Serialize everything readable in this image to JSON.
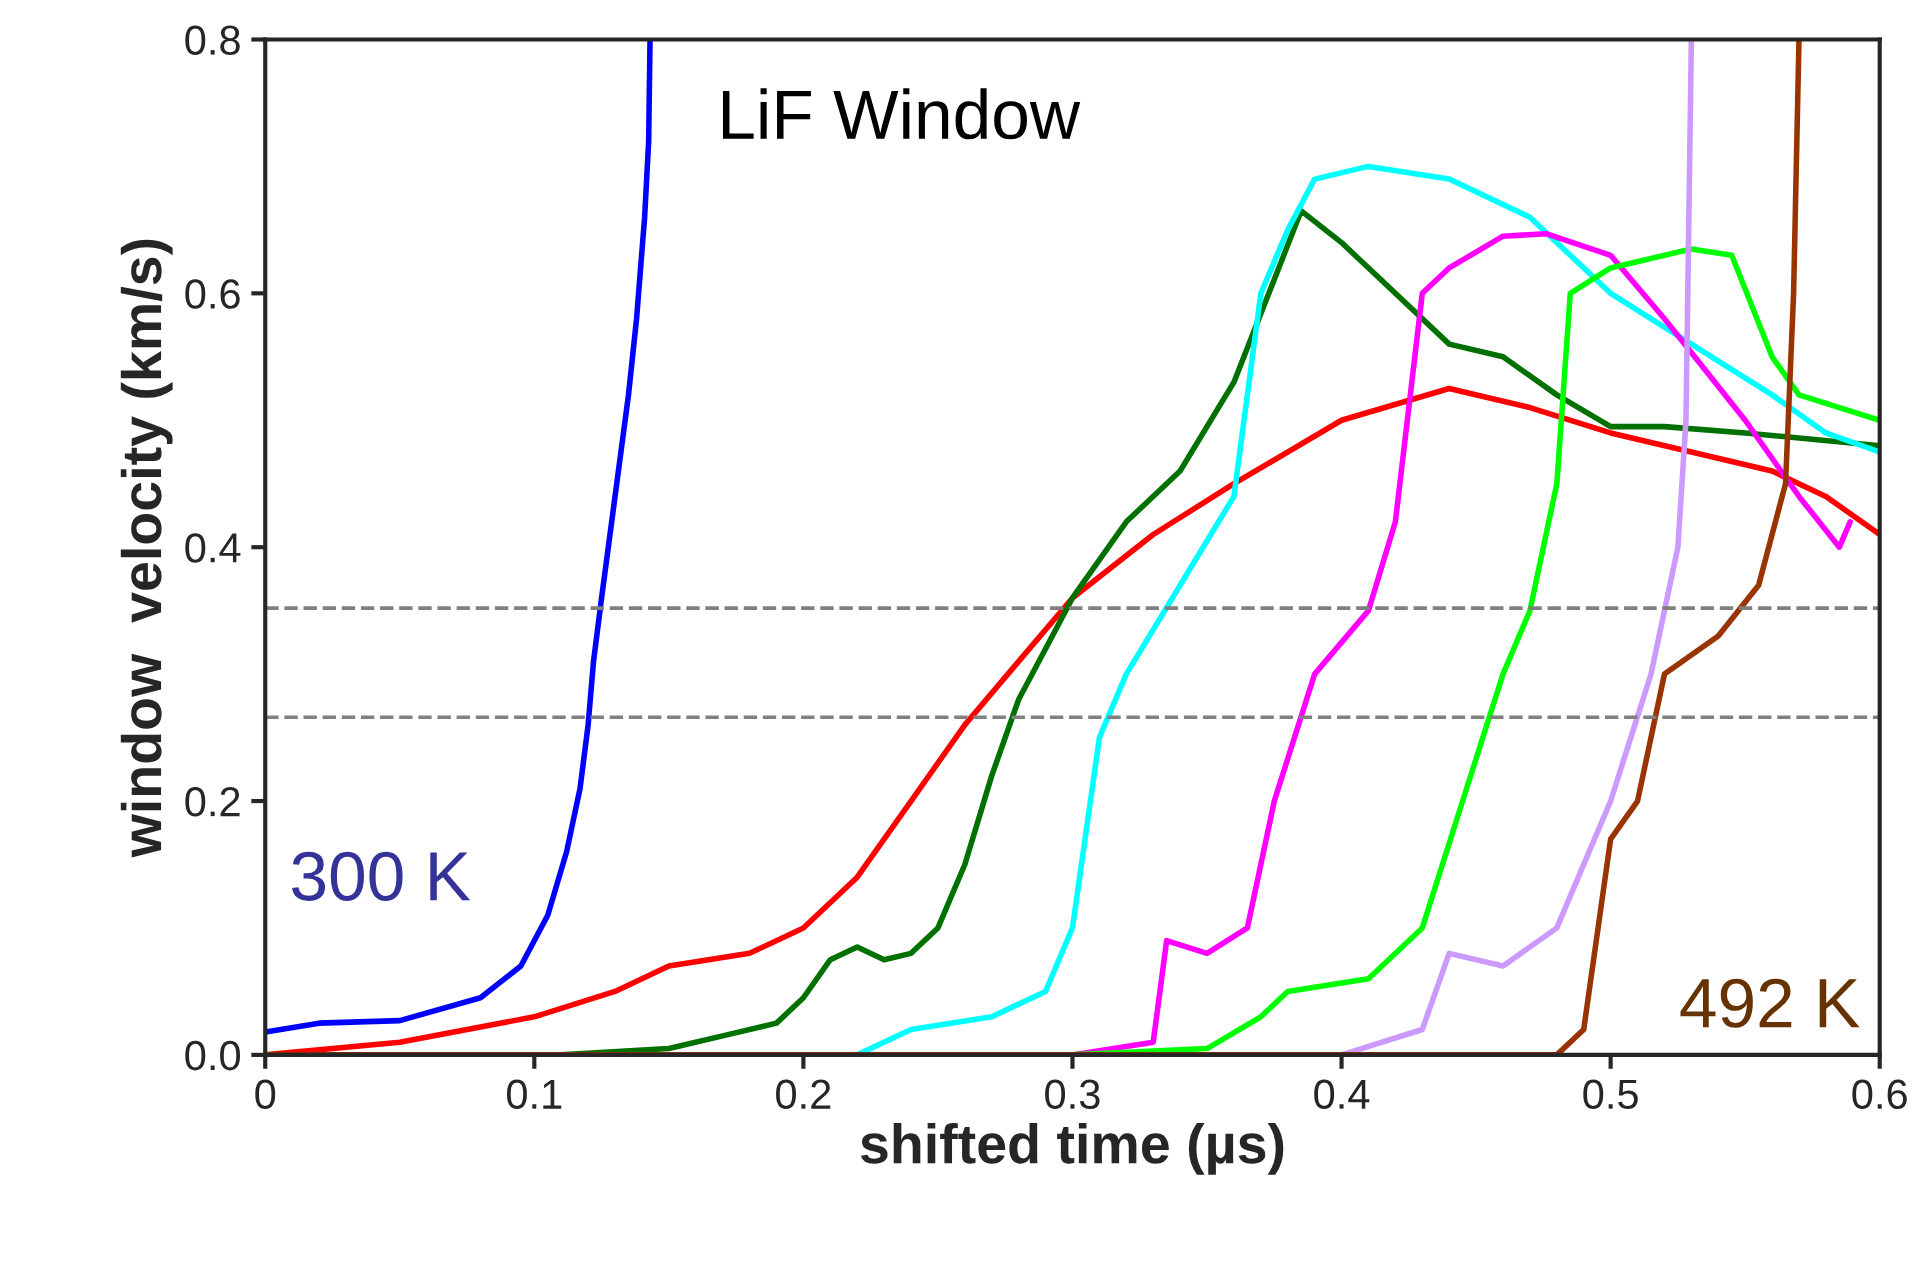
{
  "chart_data": {
    "type": "line",
    "xlabel": "shifted time (µs)",
    "ylabel": "window  velocity (km/s)",
    "xlim": [
      0,
      0.6
    ],
    "xticks": [
      {
        "value": 0,
        "label": "0"
      },
      0.1,
      0.2,
      0.3,
      0.4,
      0.5,
      0.6
    ],
    "ylim": [
      0,
      0.8
    ],
    "yticks": [
      {
        "value": 0,
        "label": "0.0"
      },
      0.2,
      0.4,
      0.6,
      0.8
    ],
    "grid": false,
    "line_style": "solid",
    "marker": "none",
    "annotations": [
      "LiF Window",
      "300 K",
      "492 K"
    ],
    "ref_lines": [
      {
        "axis": "y",
        "value": 0.352,
        "color": "#808080",
        "line_style": "dashed"
      },
      {
        "axis": "y",
        "value": 0.266,
        "color": "#808080",
        "line_style": "dashed"
      }
    ],
    "series": [
      {
        "color": "#0000ff",
        "x": [
          0,
          0.02,
          0.05,
          0.08,
          0.095,
          0.105,
          0.112,
          0.117,
          0.12,
          0.122,
          0.125,
          0.13,
          0.135,
          0.138,
          0.141,
          0.1425,
          0.143
        ],
        "values": [
          0.018,
          0.025,
          0.027,
          0.045,
          0.07,
          0.11,
          0.16,
          0.21,
          0.26,
          0.31,
          0.36,
          0.44,
          0.52,
          0.58,
          0.66,
          0.72,
          0.8
        ]
      },
      {
        "color": "#ff0000",
        "x": [
          0,
          0.05,
          0.1,
          0.13,
          0.15,
          0.18,
          0.2,
          0.22,
          0.24,
          0.26,
          0.28,
          0.3,
          0.33,
          0.36,
          0.4,
          0.44,
          0.47,
          0.5,
          0.53,
          0.56,
          0.58,
          0.6
        ],
        "values": [
          0,
          0.01,
          0.03,
          0.05,
          0.07,
          0.08,
          0.1,
          0.14,
          0.2,
          0.26,
          0.31,
          0.36,
          0.41,
          0.45,
          0.5,
          0.525,
          0.51,
          0.49,
          0.475,
          0.46,
          0.44,
          0.41
        ]
      },
      {
        "color": "#007000",
        "x": [
          0.11,
          0.15,
          0.17,
          0.19,
          0.2,
          0.21,
          0.22,
          0.23,
          0.24,
          0.25,
          0.26,
          0.27,
          0.28,
          0.3,
          0.32,
          0.34,
          0.36,
          0.385,
          0.4,
          0.42,
          0.44,
          0.46,
          0.48,
          0.5,
          0.52,
          0.55,
          0.6
        ],
        "values": [
          0,
          0.005,
          0.015,
          0.025,
          0.045,
          0.075,
          0.085,
          0.075,
          0.08,
          0.1,
          0.15,
          0.22,
          0.28,
          0.36,
          0.42,
          0.46,
          0.53,
          0.665,
          0.64,
          0.6,
          0.56,
          0.55,
          0.52,
          0.495,
          0.495,
          0.49,
          0.48
        ]
      },
      {
        "color": "#00ffff",
        "x": [
          0.115,
          0.22,
          0.24,
          0.27,
          0.29,
          0.3,
          0.31,
          0.32,
          0.34,
          0.36,
          0.37,
          0.38,
          0.39,
          0.41,
          0.44,
          0.47,
          0.5,
          0.53,
          0.56,
          0.58,
          0.6
        ],
        "values": [
          0,
          0,
          0.02,
          0.03,
          0.05,
          0.1,
          0.25,
          0.3,
          0.37,
          0.44,
          0.6,
          0.65,
          0.69,
          0.7,
          0.69,
          0.66,
          0.6,
          0.56,
          0.52,
          0.49,
          0.475
        ]
      },
      {
        "color": "#ff00ff",
        "x": [
          0.3,
          0.33,
          0.335,
          0.35,
          0.365,
          0.375,
          0.39,
          0.41,
          0.42,
          0.43,
          0.44,
          0.46,
          0.476,
          0.5,
          0.52,
          0.55,
          0.57,
          0.585,
          0.589
        ],
        "values": [
          0,
          0.01,
          0.09,
          0.08,
          0.1,
          0.2,
          0.3,
          0.35,
          0.42,
          0.6,
          0.62,
          0.645,
          0.647,
          0.63,
          0.58,
          0.5,
          0.44,
          0.4,
          0.42
        ]
      },
      {
        "color": "#00ff00",
        "x": [
          0.3,
          0.35,
          0.37,
          0.38,
          0.41,
          0.43,
          0.445,
          0.46,
          0.47,
          0.48,
          0.485,
          0.5,
          0.53,
          0.545,
          0.56,
          0.57,
          0.6
        ],
        "values": [
          0,
          0.005,
          0.03,
          0.05,
          0.06,
          0.1,
          0.2,
          0.3,
          0.35,
          0.45,
          0.6,
          0.62,
          0.635,
          0.63,
          0.55,
          0.52,
          0.5
        ]
      },
      {
        "color": "#cc99ff",
        "x": [
          0.4,
          0.43,
          0.44,
          0.46,
          0.48,
          0.5,
          0.515,
          0.525,
          0.528,
          0.53
        ],
        "values": [
          0,
          0.02,
          0.08,
          0.07,
          0.1,
          0.2,
          0.3,
          0.4,
          0.5,
          0.8
        ]
      },
      {
        "color": "#993300",
        "x": [
          0,
          0.48,
          0.49,
          0.5,
          0.51,
          0.52,
          0.54,
          0.555,
          0.565,
          0.568,
          0.57
        ],
        "values": [
          0,
          0,
          0.02,
          0.17,
          0.2,
          0.3,
          0.33,
          0.37,
          0.45,
          0.6,
          0.8
        ]
      }
    ]
  }
}
